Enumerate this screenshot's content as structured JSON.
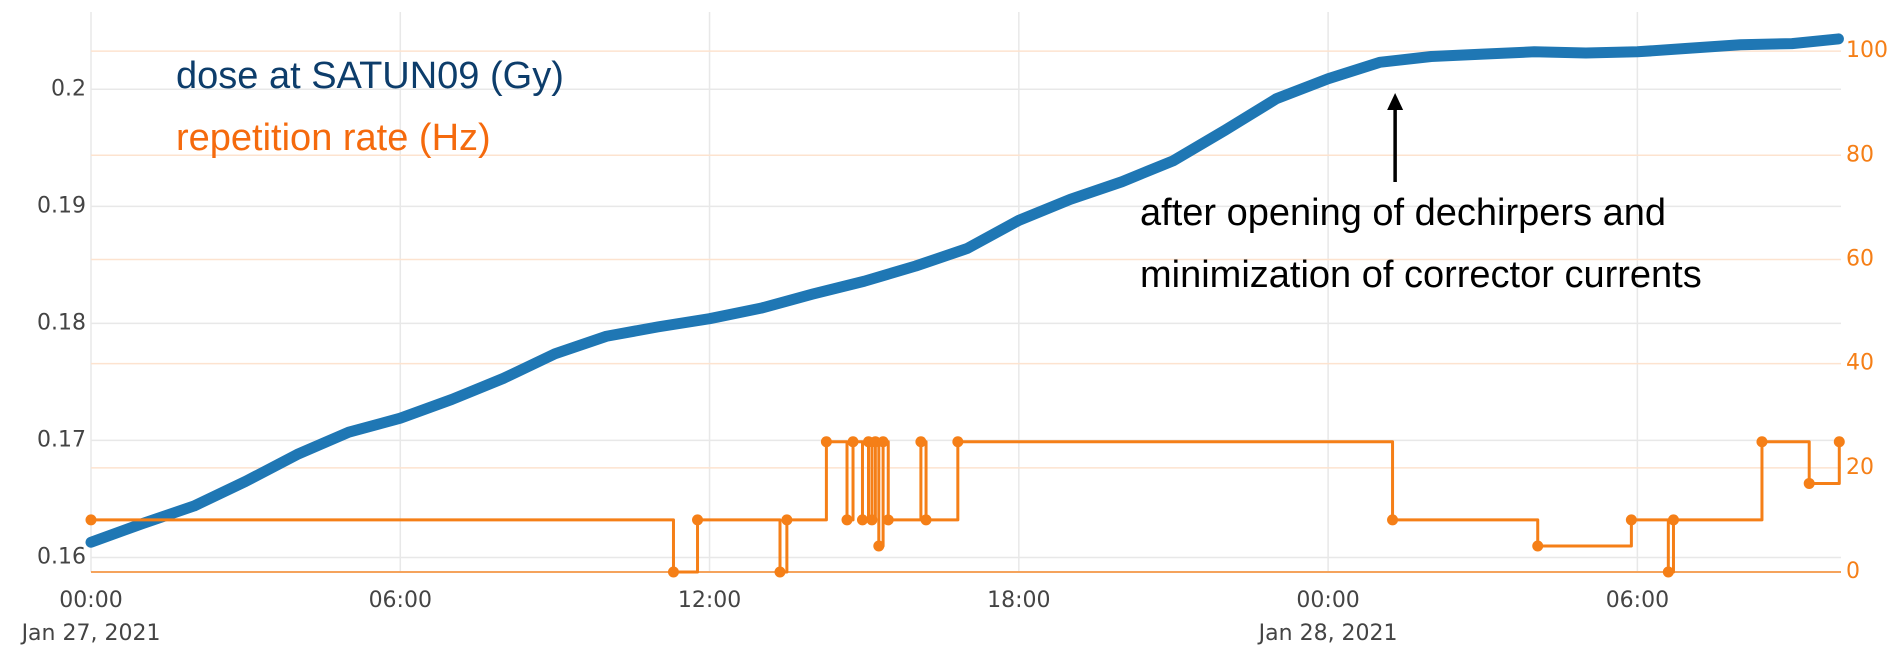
{
  "chart_data": {
    "type": "line",
    "legend_texts": [
      "dose at SATUN09 (Gy)",
      "repetition rate (Hz)"
    ],
    "annotation": {
      "lines": [
        "after opening of dechirpers and",
        "minimization of corrector currents"
      ],
      "x": "2021-01-28 01:18"
    },
    "xlim": [
      "2021-01-27 00:00",
      "2021-01-28 09:57"
    ],
    "xticks": [
      {
        "value": "2021-01-27 00:00",
        "label": "00:00"
      },
      {
        "value": "2021-01-27 06:00",
        "label": "06:00"
      },
      {
        "value": "2021-01-27 12:00",
        "label": "12:00"
      },
      {
        "value": "2021-01-27 18:00",
        "label": "18:00"
      },
      {
        "value": "2021-01-28 00:00",
        "label": "00:00"
      },
      {
        "value": "2021-01-28 06:00",
        "label": "06:00"
      }
    ],
    "x_tick_dates": [
      {
        "value": "2021-01-27 00:00",
        "label": "Jan 27, 2021"
      },
      {
        "value": "2021-01-28 00:00",
        "label": "Jan 28, 2021"
      }
    ],
    "ylim": [
      0.15876,
      0.2066
    ],
    "yticks": [
      {
        "value": 0.16,
        "label": "0.16"
      },
      0.17,
      0.18,
      0.19,
      {
        "value": 0.2,
        "label": "0.2"
      }
    ],
    "y2lim": [
      0,
      107.5
    ],
    "y2ticks": [
      0,
      20,
      40,
      60,
      80,
      100
    ],
    "grid": true,
    "series": [
      {
        "name": "dose at SATUN09 (Gy)",
        "color": "#1f77b4",
        "axis": "y",
        "shape": "linear",
        "x": [
          "2021-01-27 00:00",
          "2021-01-27 01:00",
          "2021-01-27 02:00",
          "2021-01-27 03:00",
          "2021-01-27 04:00",
          "2021-01-27 05:00",
          "2021-01-27 06:00",
          "2021-01-27 07:00",
          "2021-01-27 08:00",
          "2021-01-27 09:00",
          "2021-01-27 10:00",
          "2021-01-27 11:00",
          "2021-01-27 12:00",
          "2021-01-27 13:00",
          "2021-01-27 14:00",
          "2021-01-27 15:00",
          "2021-01-27 16:00",
          "2021-01-27 17:00",
          "2021-01-27 18:00",
          "2021-01-27 19:00",
          "2021-01-27 20:00",
          "2021-01-27 21:00",
          "2021-01-27 22:00",
          "2021-01-27 23:00",
          "2021-01-28 00:00",
          "2021-01-28 01:00",
          "2021-01-28 02:00",
          "2021-01-28 03:00",
          "2021-01-28 04:00",
          "2021-01-28 05:00",
          "2021-01-28 06:00",
          "2021-01-28 07:00",
          "2021-01-28 08:00",
          "2021-01-28 09:00",
          "2021-01-28 09:54"
        ],
        "values": [
          0.1613,
          0.1629,
          0.1644,
          0.1665,
          0.1688,
          0.1707,
          0.1719,
          0.1735,
          0.1753,
          0.1774,
          0.1789,
          0.1797,
          0.1804,
          0.1813,
          0.1825,
          0.1836,
          0.1849,
          0.1864,
          0.1888,
          0.1906,
          0.1921,
          0.1939,
          0.1965,
          0.1992,
          0.2009,
          0.2023,
          0.2028,
          0.203,
          0.2032,
          0.2031,
          0.2032,
          0.2035,
          0.2038,
          0.2039,
          0.2043
        ]
      },
      {
        "name": "repetition rate (Hz)",
        "color": "#f57f17",
        "axis": "y2",
        "shape": "hv",
        "x": [
          "2021-01-27 00:00",
          "2021-01-27 11:18",
          "2021-01-27 11:46",
          "2021-01-27 13:22",
          "2021-01-27 13:30",
          "2021-01-27 14:16",
          "2021-01-27 14:40",
          "2021-01-27 14:47",
          "2021-01-27 14:58",
          "2021-01-27 15:05",
          "2021-01-27 15:09",
          "2021-01-27 15:13",
          "2021-01-27 15:17",
          "2021-01-27 15:22",
          "2021-01-27 15:28",
          "2021-01-27 16:06",
          "2021-01-27 16:12",
          "2021-01-27 16:49",
          "2021-01-28 01:15",
          "2021-01-28 04:04",
          "2021-01-28 05:53",
          "2021-01-28 06:36",
          "2021-01-28 06:42",
          "2021-01-28 08:25",
          "2021-01-28 09:20",
          "2021-01-28 09:55"
        ],
        "values": [
          10,
          0,
          10,
          0,
          10,
          25,
          10,
          25,
          10,
          25,
          10,
          25,
          5,
          25,
          10,
          25,
          10,
          25,
          10,
          5,
          10,
          0,
          10,
          25,
          17,
          25
        ]
      }
    ]
  }
}
